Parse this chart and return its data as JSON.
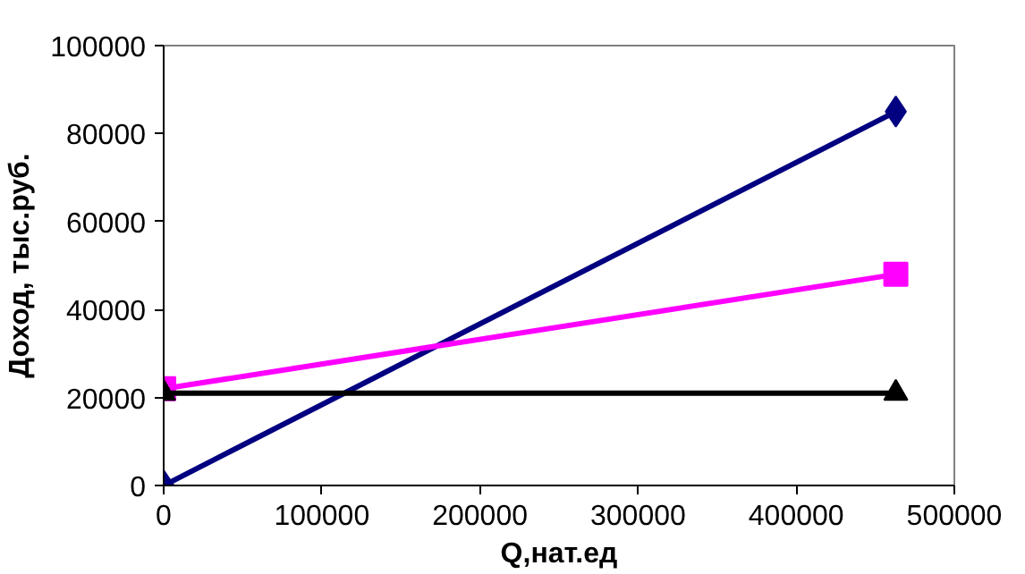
{
  "chart_data": {
    "type": "line",
    "xlabel": "Q,нат.ед",
    "ylabel": "Доход, тыс.руб.",
    "x": [
      0,
      463000
    ],
    "series": [
      {
        "color": "#000080",
        "values": [
          0,
          85000
        ],
        "marker": "diamond"
      },
      {
        "color": "#ff00ff",
        "values": [
          22000,
          48000
        ],
        "marker": "square"
      },
      {
        "color": "#000000",
        "values": [
          21000,
          21000
        ],
        "marker": "triangle"
      }
    ],
    "xlim": [
      0,
      500000
    ],
    "xticks": [
      0,
      100000,
      200000,
      300000,
      400000,
      500000
    ],
    "ylim": [
      0,
      100000
    ],
    "yticks": [
      0,
      20000,
      40000,
      60000,
      80000,
      100000
    ],
    "grid": false,
    "line_style": "solid"
  }
}
